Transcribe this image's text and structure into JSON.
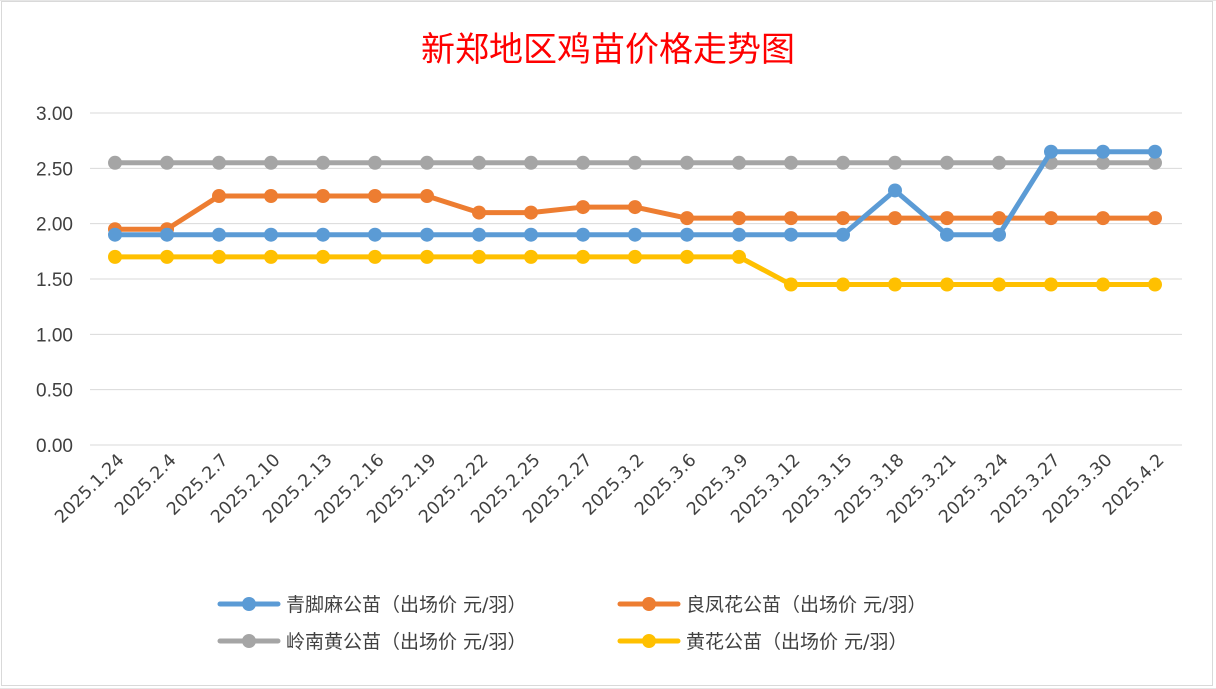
{
  "chart_data": {
    "type": "line",
    "title": "新郑地区鸡苗价格走势图",
    "xlabel": "",
    "ylabel": "",
    "ylim": [
      0,
      3
    ],
    "y_ticks": [
      "0.00",
      "0.50",
      "1.00",
      "1.50",
      "2.00",
      "2.50",
      "3.00"
    ],
    "grid": "horizontal",
    "legend_position": "bottom",
    "categories": [
      "2025.1.24",
      "2025.2.4",
      "2025.2.7",
      "2025.2.10",
      "2025.2.13",
      "2025.2.16",
      "2025.2.19",
      "2025.2.22",
      "2025.2.25",
      "2025.2.27",
      "2025.3.2",
      "2025.3.6",
      "2025.3.9",
      "2025.3.12",
      "2025.3.15",
      "2025.3.18",
      "2025.3.21",
      "2025.3.24",
      "2025.3.27",
      "2025.3.30",
      "2025.4.2"
    ],
    "series": [
      {
        "name": "青脚麻公苗（出场价 元/羽）",
        "color": "#5b9bd5",
        "values": [
          1.9,
          1.9,
          1.9,
          1.9,
          1.9,
          1.9,
          1.9,
          1.9,
          1.9,
          1.9,
          1.9,
          1.9,
          1.9,
          1.9,
          1.9,
          2.3,
          1.9,
          1.9,
          2.65,
          2.65,
          2.65
        ]
      },
      {
        "name": "良凤花公苗（出场价 元/羽）",
        "color": "#ed7d31",
        "values": [
          1.95,
          1.95,
          2.25,
          2.25,
          2.25,
          2.25,
          2.25,
          2.1,
          2.1,
          2.15,
          2.15,
          2.05,
          2.05,
          2.05,
          2.05,
          2.05,
          2.05,
          2.05,
          2.05,
          2.05,
          2.05
        ]
      },
      {
        "name": "岭南黄公苗（出场价 元/羽）",
        "color": "#a5a5a5",
        "values": [
          2.55,
          2.55,
          2.55,
          2.55,
          2.55,
          2.55,
          2.55,
          2.55,
          2.55,
          2.55,
          2.55,
          2.55,
          2.55,
          2.55,
          2.55,
          2.55,
          2.55,
          2.55,
          2.55,
          2.55,
          2.55
        ]
      },
      {
        "name": "黄花公苗（出场价 元/羽）",
        "color": "#ffc000",
        "values": [
          1.7,
          1.7,
          1.7,
          1.7,
          1.7,
          1.7,
          1.7,
          1.7,
          1.7,
          1.7,
          1.7,
          1.7,
          1.7,
          1.45,
          1.45,
          1.45,
          1.45,
          1.45,
          1.45,
          1.45,
          1.45
        ]
      }
    ]
  }
}
